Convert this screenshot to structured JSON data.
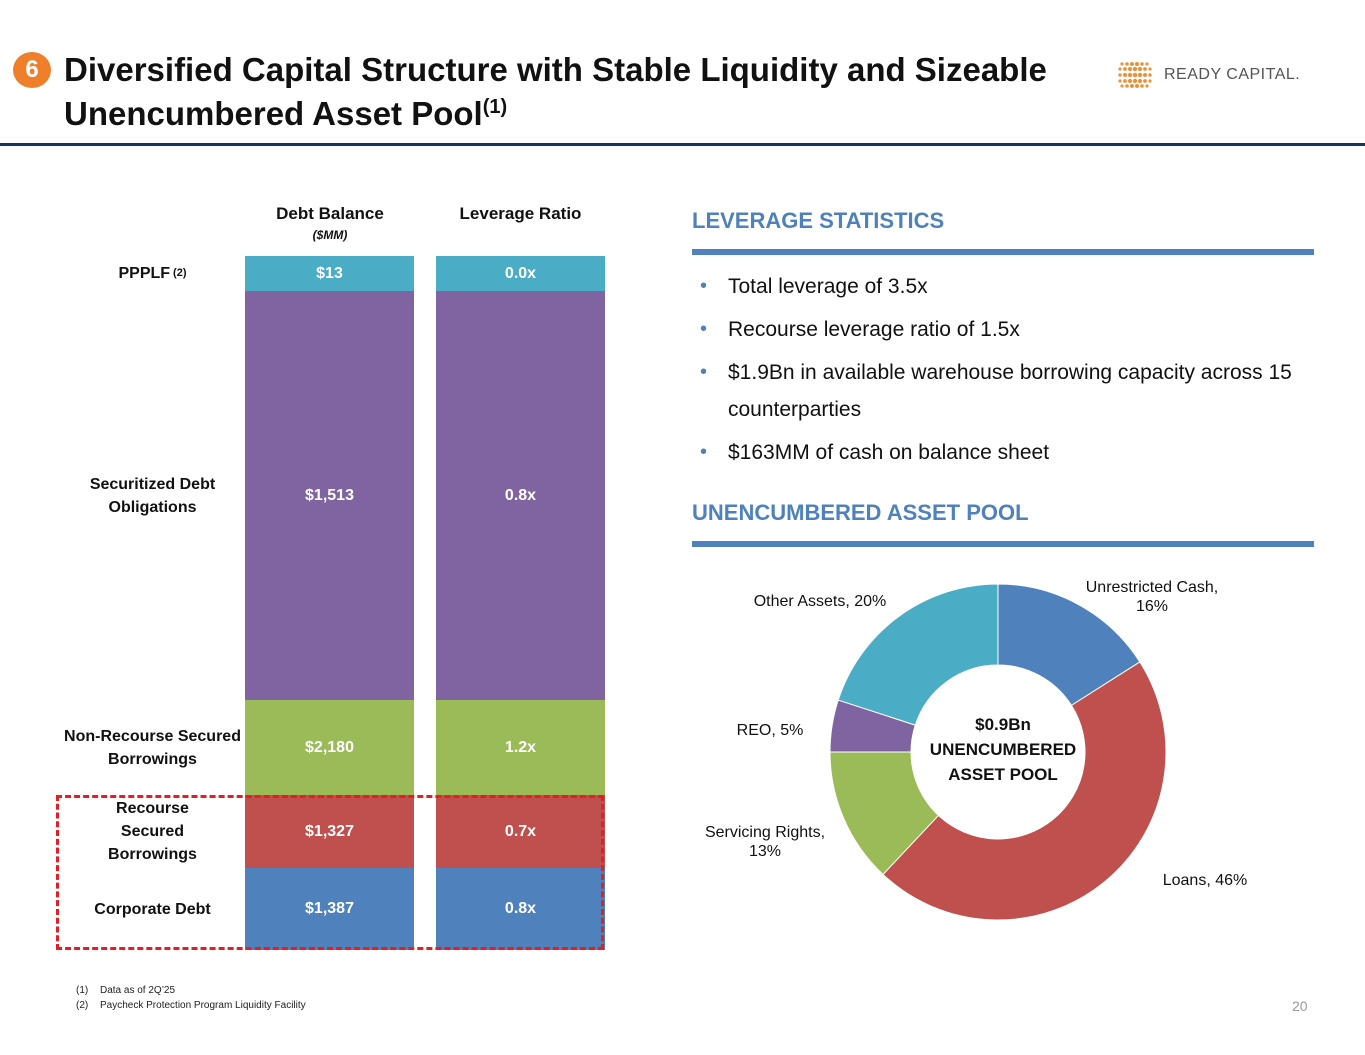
{
  "header": {
    "number": "6",
    "title_line1": "Diversified Capital Structure with Stable Liquidity and Sizeable",
    "title_line2": "Unencumbered Asset Pool",
    "title_sup": "(1)",
    "logo_text": "READY CAPITAL."
  },
  "left_chart": {
    "debt_header": "Debt Balance",
    "debt_sub": "($MM)",
    "leverage_header": "Leverage Ratio",
    "rows": [
      {
        "label": "PPPLF",
        "label_sup": "(2)",
        "debt": "$13",
        "leverage": "0.0x",
        "color": "#4bacc6"
      },
      {
        "label": "Securitized Debt Obligations",
        "debt": "$1,513",
        "leverage": "0.8x",
        "color": "#8064a2"
      },
      {
        "label": "Non-Recourse Secured Borrowings",
        "debt": "$2,180",
        "leverage": "1.2x",
        "color": "#9bbb59"
      },
      {
        "label": "Recourse Secured Borrowings",
        "debt": "$1,327",
        "leverage": "0.7x",
        "color": "#c0504d"
      },
      {
        "label": "Corporate Debt",
        "debt": "$1,387",
        "leverage": "0.8x",
        "color": "#4f81bd"
      }
    ]
  },
  "leverage": {
    "title": "LEVERAGE STATISTICS",
    "bullets": [
      "Total leverage of 3.5x",
      "Recourse leverage ratio of 1.5x",
      "$1.9Bn in available warehouse borrowing capacity across 15 counterparties",
      "$163MM of cash on balance sheet"
    ]
  },
  "asset_pool": {
    "title": "UNENCUMBERED ASSET POOL",
    "center_line1": "$0.9Bn",
    "center_line2": "UNENCUMBERED",
    "center_line3": "ASSET POOL"
  },
  "chart_data": {
    "type": "pie",
    "variant": "donut",
    "title": "UNENCUMBERED ASSET POOL",
    "categories": [
      "Unrestricted Cash",
      "Loans",
      "Servicing Rights",
      "REO",
      "Other Assets"
    ],
    "values": [
      16,
      46,
      13,
      5,
      20
    ],
    "labels": [
      "Unrestricted Cash, 16%",
      "Loans, 46%",
      "Servicing Rights, 13%",
      "REO, 5%",
      "Other Assets, 20%"
    ],
    "colors": [
      "#4f81bd",
      "#c0504d",
      "#9bbb59",
      "#8064a2",
      "#4bacc6"
    ]
  },
  "footnotes": [
    {
      "n": "(1)",
      "text": "Data as of 2Q’25"
    },
    {
      "n": "(2)",
      "text": "Paycheck Protection Program Liquidity Facility"
    }
  ],
  "page_number": "20"
}
